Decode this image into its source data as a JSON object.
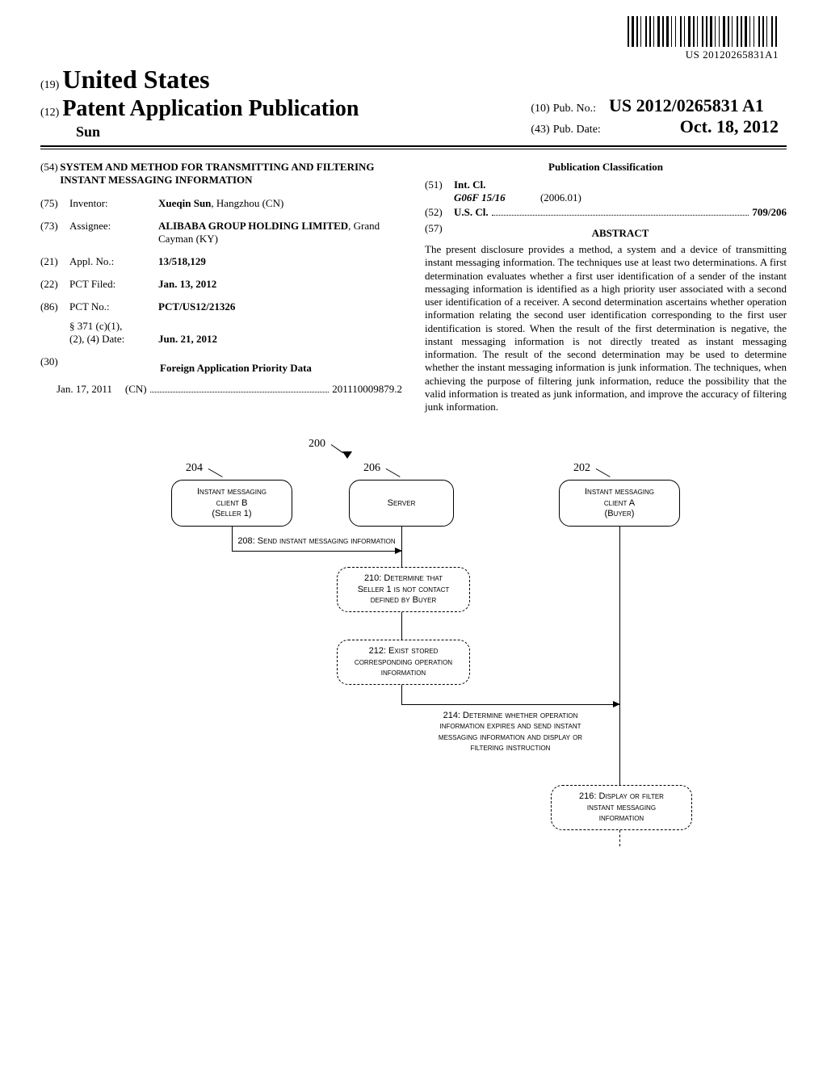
{
  "barcode": {
    "text": "US 20120265831A1",
    "bars": [
      2,
      1,
      3,
      1,
      2,
      1,
      1,
      3,
      2,
      1,
      2,
      1,
      1,
      2,
      3,
      1,
      2,
      1,
      3,
      1,
      1,
      2,
      1,
      3,
      2,
      1,
      1,
      2,
      3,
      1,
      2,
      1,
      1,
      3,
      2,
      1,
      2,
      1,
      3,
      1,
      1,
      2,
      1,
      2,
      3,
      1,
      2,
      1,
      1,
      3,
      2,
      1,
      2,
      1,
      3,
      1,
      1,
      2,
      1,
      3,
      2,
      1,
      2,
      1,
      1,
      3,
      2,
      1,
      2,
      1
    ]
  },
  "header": {
    "line19": "(19)",
    "us": "United States",
    "line12": "(12)",
    "pap": "Patent Application Publication",
    "author": "Sun",
    "line10": "(10)",
    "pubno_label": "Pub. No.:",
    "pubno": "US 2012/0265831 A1",
    "line43": "(43)",
    "pubdate_label": "Pub. Date:",
    "pubdate": "Oct. 18, 2012"
  },
  "left": {
    "n54": "(54)",
    "title": "SYSTEM AND METHOD FOR TRANSMITTING AND FILTERING INSTANT MESSAGING INFORMATION",
    "n75": "(75)",
    "inventor_lbl": "Inventor:",
    "inventor": "Xueqin Sun",
    "inventor_loc": ", Hangzhou (CN)",
    "n73": "(73)",
    "assignee_lbl": "Assignee:",
    "assignee": "ALIBABA GROUP HOLDING LIMITED",
    "assignee_loc": ", Grand Cayman (KY)",
    "n21": "(21)",
    "appl_lbl": "Appl. No.:",
    "appl": "13/518,129",
    "n22": "(22)",
    "pct_filed_lbl": "PCT Filed:",
    "pct_filed": "Jan. 13, 2012",
    "n86": "(86)",
    "pct_no_lbl": "PCT No.:",
    "pct_no": "PCT/US12/21326",
    "s371_lbl": "§ 371 (c)(1),\n(2), (4) Date:",
    "s371": "Jun. 21, 2012",
    "n30": "(30)",
    "foreign_hdr": "Foreign Application Priority Data",
    "foreign_date": "Jan. 17, 2011",
    "foreign_cc": "(CN)",
    "foreign_num": "201110009879.2"
  },
  "right": {
    "class_hdr": "Publication Classification",
    "n51": "(51)",
    "intcl_lbl": "Int. Cl.",
    "intcl_code": "G06F 15/16",
    "intcl_date": "(2006.01)",
    "n52": "(52)",
    "uscl_lbl": "U.S. Cl.",
    "uscl": "709/206",
    "n57": "(57)",
    "abstract_hdr": "ABSTRACT",
    "abstract": "The present disclosure provides a method, a system and a device of transmitting instant messaging information. The techniques use at least two determinations. A first determination evaluates whether a first user identification of a sender of the instant messaging information is identified as a high priority user associated with a second user identification of a receiver. A second determination ascertains whether operation information relating the second user identification corresponding to the first user identification is stored. When the result of the first determination is negative, the instant messaging information is not directly treated as instant messaging information. The result of the second determination may be used to determine whether the instant messaging information is junk information. The techniques, when achieving the purpose of filtering junk information, reduce the possibility that the valid information is treated as junk information, and improve the accuracy of filtering junk information."
  },
  "diagram": {
    "ref200": "200",
    "ref204": "204",
    "boxB": "Instant messaging\nclient B\n(Seller 1)",
    "ref206": "206",
    "server": "Server",
    "ref202": "202",
    "boxA": "Instant messaging\nclient A\n(Buyer)",
    "step208": "208:  Send instant messaging information",
    "step210": "210:  Determine that\nSeller 1 is not contact\ndefined by Buyer",
    "step212": "212:  Exist stored\ncorresponding operation\ninformation",
    "step214": "214:  Determine whether operation\ninformation expires and send instant\nmessaging information and display or\nfiltering instruction",
    "step216": "216:  Display or filter\ninstant messaging\ninformation"
  }
}
